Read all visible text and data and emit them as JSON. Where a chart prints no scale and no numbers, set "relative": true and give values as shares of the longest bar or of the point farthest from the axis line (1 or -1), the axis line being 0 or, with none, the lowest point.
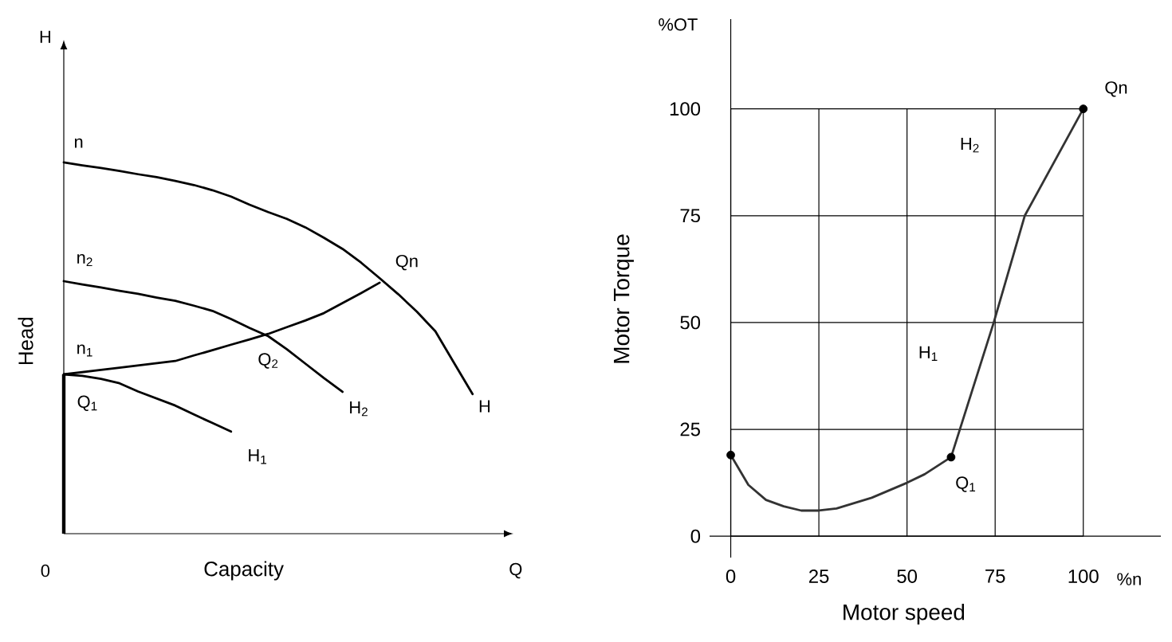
{
  "chart_data": [
    {
      "type": "line",
      "relative": true,
      "xlabel": "Capacity",
      "ylabel": "Head",
      "line_style": "solid",
      "categories": [
        null,
        null,
        null,
        null,
        null,
        null,
        null,
        null,
        null,
        null,
        null,
        null,
        null,
        null,
        null,
        null,
        null,
        null,
        null,
        null,
        null,
        null,
        null
      ],
      "series": [
        {
          "color": "#000000",
          "values": [
            1.0,
            0.992,
            0.985,
            0.977,
            0.968,
            0.96,
            0.95,
            0.939,
            0.925,
            0.908,
            0.886,
            0.866,
            0.848,
            0.825,
            0.797,
            0.767,
            0.73,
            0.688,
            0.645,
            0.598,
            0.545,
            0.46,
            0.376
          ]
        },
        {
          "color": "#000000",
          "values": [
            0.68,
            0.671,
            0.663,
            0.654,
            0.646,
            0.636,
            0.627,
            0.614,
            0.6,
            0.578,
            0.554,
            0.532,
            0.497,
            0.458,
            0.419,
            0.382,
            null,
            null,
            null,
            null,
            null,
            null,
            null
          ]
        },
        {
          "color": "#000000",
          "values": [
            0.429,
            0.425,
            0.417,
            0.405,
            0.383,
            0.364,
            0.345,
            0.321,
            0.298,
            0.275,
            null,
            null,
            null,
            null,
            null,
            null,
            null,
            null,
            null,
            null,
            null,
            null,
            null
          ]
        },
        {
          "color": "#000000",
          "values": [
            0.429,
            0.435,
            0.441,
            0.447,
            0.453,
            0.459,
            0.465,
            0.48,
            0.494,
            0.509,
            0.523,
            0.538,
            0.556,
            0.574,
            0.594,
            0.621,
            0.648,
            0.676,
            null,
            null,
            null,
            null,
            null
          ]
        }
      ],
      "annotations": [
        "n",
        "n$_{2}$",
        "n$_{1}$",
        "Q$_{1}$",
        "Q$_{2}$",
        "Qn",
        "H",
        "H$_{2}$",
        "H$_{1}$",
        "0",
        "Q",
        "H"
      ]
    },
    {
      "type": "line",
      "xlabel": "Motor speed",
      "ylabel": "Motor Torque",
      "xlim": [
        -6,
        122
      ],
      "ylim": [
        -5,
        121
      ],
      "xticks": [
        0,
        25,
        50,
        75,
        100
      ],
      "yticks": [
        0,
        25,
        50,
        75,
        100
      ],
      "grid": true,
      "series": [
        {
          "color": "#333333",
          "x": [
            0,
            5,
            10,
            15,
            20,
            25,
            30,
            40,
            50,
            55,
            62.5,
            74.6,
            83.4,
            100
          ],
          "values": [
            19,
            12,
            8.5,
            7,
            6,
            6,
            6.5,
            9,
            12.5,
            14.5,
            18.5,
            50,
            75,
            100
          ]
        },
        {
          "type": "scatter",
          "marker": "circle",
          "color": "#000000",
          "x": [
            0,
            62.5,
            100
          ],
          "values": [
            19,
            18.5,
            100
          ]
        }
      ],
      "annotations": [
        "Qn",
        "H$_{2}$",
        "H$_{1}$",
        "Q$_{1}$",
        "%OT",
        "%n"
      ]
    }
  ]
}
